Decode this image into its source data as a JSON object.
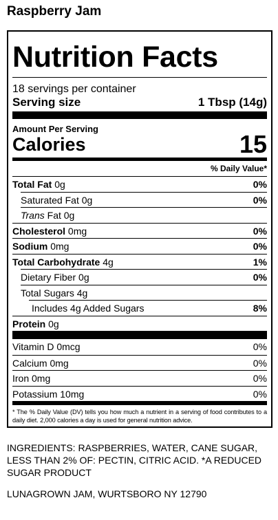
{
  "product": "Raspberry Jam",
  "label": {
    "heading": "Nutrition Facts",
    "servings": "18 servings per container",
    "serving_size_label": "Serving size",
    "serving_size": "1 Tbsp (14g)",
    "amount_per_serving": "Amount Per Serving",
    "calories_label": "Calories",
    "calories": 15,
    "dv_header": "% Daily Value*",
    "total_fat": {
      "name": "Total Fat",
      "amount": "0g",
      "dv": "0%"
    },
    "saturated_fat": {
      "name": "Saturated Fat",
      "amount": "0g",
      "dv": "0%"
    },
    "trans_fat": {
      "prefix": "Trans",
      "name": "Fat",
      "amount": "0g"
    },
    "cholesterol": {
      "name": "Cholesterol",
      "amount": "0mg",
      "dv": "0%"
    },
    "sodium": {
      "name": "Sodium",
      "amount": "0mg",
      "dv": "0%"
    },
    "total_carbohydrate": {
      "name": "Total Carbohydrate",
      "amount": "4g",
      "dv": "1%"
    },
    "dietary_fiber": {
      "name": "Dietary Fiber",
      "amount": "0g",
      "dv": "0%"
    },
    "total_sugars": {
      "name": "Total Sugars",
      "amount": "4g"
    },
    "added_sugars": {
      "text": "Includes 4g Added Sugars",
      "dv": "8%"
    },
    "protein": {
      "name": "Protein",
      "amount": "0g"
    },
    "micronutrients": [
      {
        "name": "Vitamin D 0mcg",
        "dv": "0%"
      },
      {
        "name": "Calcium 0mg",
        "dv": "0%"
      },
      {
        "name": "Iron 0mg",
        "dv": "0%"
      },
      {
        "name": "Potassium 10mg",
        "dv": "0%"
      }
    ],
    "footnote": "* The % Daily Value (DV) tells you how much a nutrient in a serving of food contributes to a daily diet. 2,000 calories a day is used for general nutrition advice."
  },
  "ingredients": "INGREDIENTS: RASPBERRIES, WATER, CANE SUGAR, LESS THAN 2% OF: PECTIN, CITRIC ACID. *A REDUCED SUGAR PRODUCT",
  "manufacturer": "LUNAGROWN JAM, WURTSBORO NY 12790"
}
